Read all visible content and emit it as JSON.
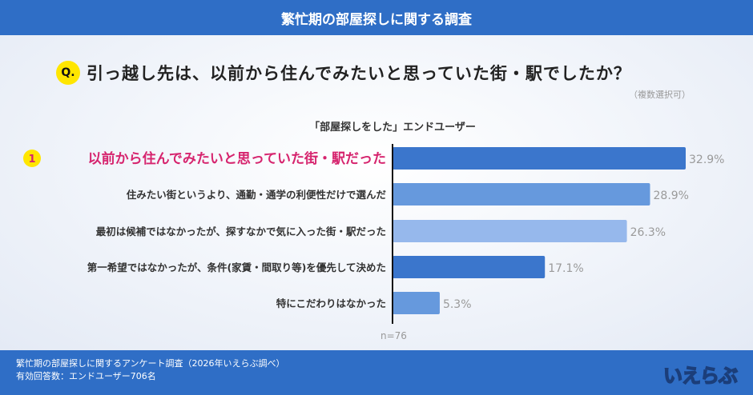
{
  "header": {
    "title": "繁忙期の部屋探しに関する調査"
  },
  "question": {
    "badge": "Q.",
    "text": "引っ越し先は、以前から住んでみたいと思っていた街・駅でしたか？",
    "note": "（複数選択可）"
  },
  "chart_data": {
    "type": "bar",
    "orientation": "horizontal",
    "title": "「部屋探しをした」エンドユーザー",
    "categories": [
      "以前から住んでみたいと思っていた街・駅だった",
      "住みたい街というより、通勤・通学の利便性だけで選んだ",
      "最初は候補ではなかったが、探すなかで気に入った街・駅だった",
      "第一希望ではなかったが、条件(家賃・間取り等)を優先して決めた",
      "特にこだわりはなかった"
    ],
    "values": [
      32.9,
      28.9,
      26.3,
      17.1,
      5.3
    ],
    "value_labels": [
      "32.9%",
      "28.9%",
      "26.3%",
      "17.1%",
      "5.3%"
    ],
    "unit": "%",
    "colors": [
      "#3b76cc",
      "#6699dd",
      "#96b8ec",
      "#3b76cc",
      "#6699dd"
    ],
    "highlight_rank": "1",
    "highlight_color": "#d6246e",
    "note": "n=76",
    "xlim": [
      0,
      35
    ],
    "grid": false
  },
  "footer": {
    "line1": "繁忙期の部屋探しに関するアンケート調査（2026年いえらぶ調べ）",
    "line2": "有効回答数：エンドユーザー706名"
  },
  "logo": "いえらぶ"
}
